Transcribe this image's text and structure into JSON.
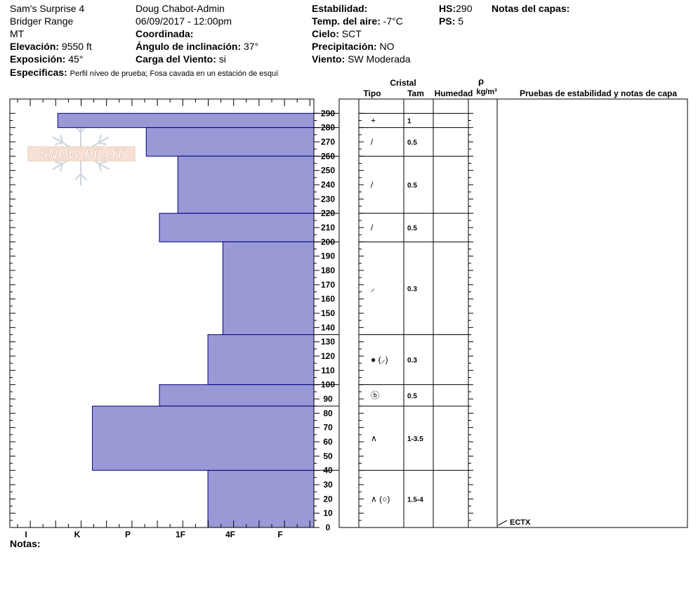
{
  "header": {
    "site": "Sam's Surprise 4",
    "range": "Bridger Range",
    "state": "MT",
    "elevation_label": "Elevación:",
    "elevation_value": "9550 ft",
    "aspect_label": "Exposición:",
    "aspect_value": "45°",
    "specifics_label": "Especificas:",
    "specifics_value": "Perfil níveo de prueba; Fosa cavada en un estación de esquí",
    "observer": "Doug Chabot-Admin",
    "datetime": "06/09/2017 - 12:00pm",
    "coord_label": "Coordinada:",
    "slope_label": "Ángulo de inclinación:",
    "slope_value": "37°",
    "windload_label": "Carga del Viento:",
    "windload_value": "si",
    "stability_label": "Estabilidad:",
    "airtemp_label": "Temp. del aire:",
    "airtemp_value": "-7°C",
    "sky_label": "Cielo:",
    "sky_value": "SCT",
    "precip_label": "Precipitación:",
    "precip_value": "NO",
    "wind_label": "Viento:",
    "wind_value": "SW Moderada",
    "hs_label": "HS:",
    "hs_value": "290",
    "ps_label": "PS:",
    "ps_value": "5",
    "layer_notes_label": "Notas del capas:"
  },
  "logo": {
    "text": "SNOW PILOT"
  },
  "columns": {
    "crystal": "Cristal",
    "type": "Tipo",
    "size": "Tam",
    "moisture": "Humedad",
    "rho": "ρ",
    "density_unit": "kg/m³",
    "stability_notes": "Pruebas de estabilidad y notas de capa"
  },
  "notes_label": "Notas:",
  "test_label": "ECTX",
  "chart_data": {
    "type": "bar",
    "hardness_scale": [
      "I",
      "K",
      "P",
      "1F",
      "4F",
      "F"
    ],
    "y_ticks": [
      0,
      10,
      20,
      30,
      40,
      50,
      60,
      70,
      80,
      90,
      100,
      110,
      120,
      130,
      140,
      150,
      160,
      170,
      180,
      190,
      200,
      210,
      220,
      230,
      240,
      250,
      260,
      270,
      280,
      290
    ],
    "ylim": [
      0,
      300
    ],
    "colors": {
      "bar_fill": "#9999d6",
      "bar_stroke": "#000080"
    },
    "layers": [
      {
        "bottom": 280,
        "top": 290,
        "hardness": 0.62,
        "symbol": "+",
        "size": "1"
      },
      {
        "bottom": 260,
        "top": 280,
        "hardness": 2.35,
        "symbol": "/",
        "size": "0.5"
      },
      {
        "bottom": 220,
        "top": 260,
        "hardness": 2.95,
        "symbol": "/",
        "size": "0.5"
      },
      {
        "bottom": 200,
        "top": 220,
        "hardness": 2.6,
        "symbol": "/",
        "size": "0.5"
      },
      {
        "bottom": 135,
        "top": 200,
        "hardness": 3.85,
        "symbol": "⸝",
        "size": "0.3"
      },
      {
        "bottom": 100,
        "top": 135,
        "hardness": 3.55,
        "symbol": "● (⸝)",
        "size": "0.3"
      },
      {
        "bottom": 85,
        "top": 100,
        "hardness": 2.6,
        "symbol": "ⓑ",
        "size": "0.5"
      },
      {
        "bottom": 40,
        "top": 85,
        "hardness": 1.3,
        "symbol": "∧",
        "size": "1-3.5"
      },
      {
        "bottom": 0,
        "top": 40,
        "hardness": 3.55,
        "symbol": "∧ (○)",
        "size": "1.5-4"
      }
    ],
    "test_depth": 5
  }
}
